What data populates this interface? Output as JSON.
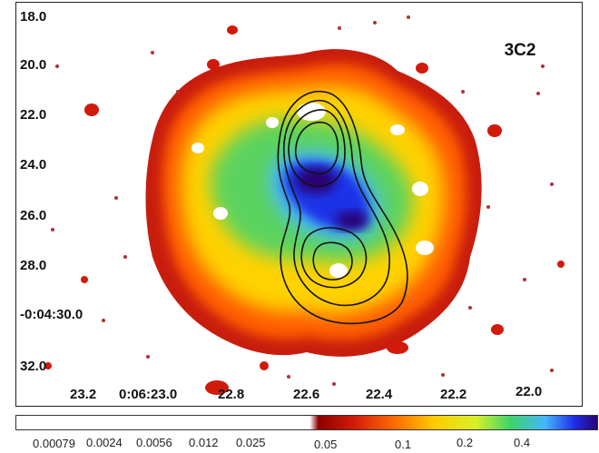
{
  "image": {
    "title": "3C2",
    "y_ticks": [
      "18.0",
      "20.0",
      "22.0",
      "24.0",
      "26.0",
      "28.0",
      "-0:04:30.0",
      "32.0"
    ],
    "x_ticks": [
      "23.2",
      "0:06:23.0",
      "22.8",
      "22.6",
      "22.4",
      "22.2",
      "22.0"
    ],
    "colorbar_ticks": [
      "0.00079",
      "0.0024",
      "0.0056",
      "0.012",
      "0.025",
      "0.05",
      "0.1",
      "0.2",
      "0.4"
    ],
    "colormap": [
      "#ffffff",
      "#8b0000",
      "#d11a0a",
      "#ff6a00",
      "#ffcc00",
      "#d8f028",
      "#3fd36a",
      "#45b6ff",
      "#1e2ee8",
      "#2a0070"
    ],
    "contour_color": "#111111"
  }
}
